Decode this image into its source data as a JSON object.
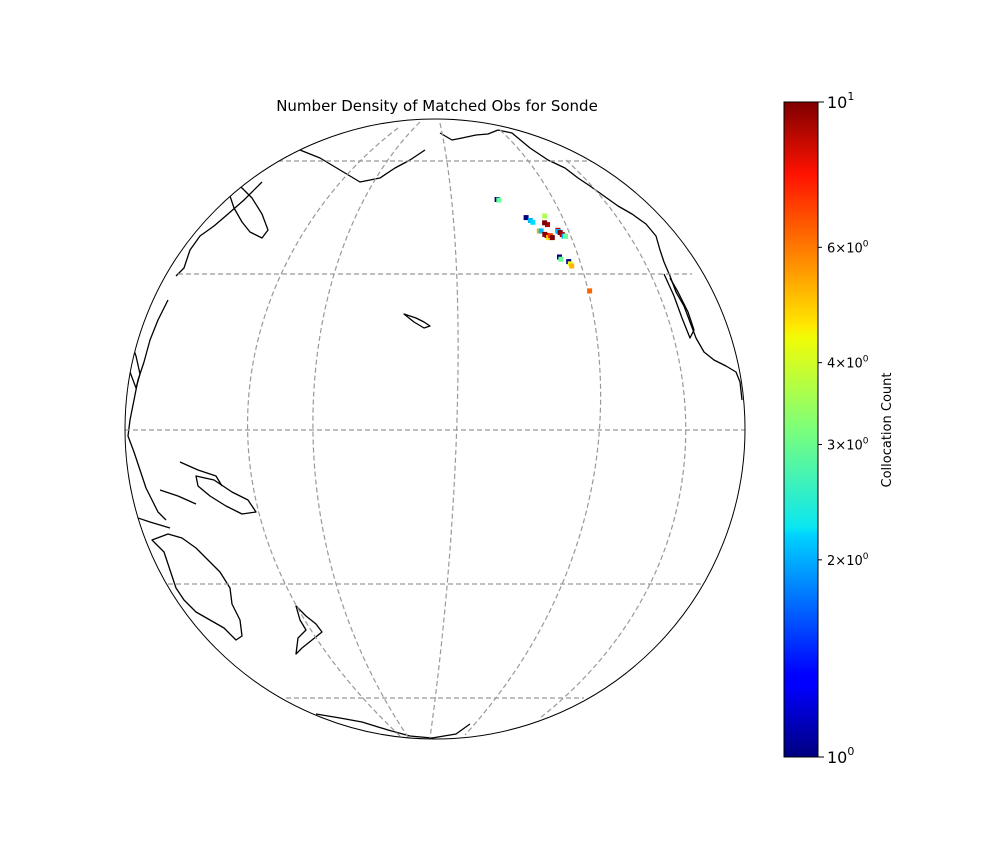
{
  "chart_data": {
    "type": "heatmap",
    "projection": "orthographic",
    "title": "Number Density of Matched Obs for Sonde",
    "colorbar": {
      "label": "Collocation Count",
      "scale": "log",
      "range": [
        1,
        10
      ],
      "colormap": "jet",
      "ticks": [
        {
          "value": 1,
          "base": "10",
          "exp": "0"
        },
        {
          "value": 2,
          "mant": "2",
          "base": "10",
          "exp": "0"
        },
        {
          "value": 3,
          "mant": "3",
          "base": "10",
          "exp": "0"
        },
        {
          "value": 4,
          "mant": "4",
          "base": "10",
          "exp": "0"
        },
        {
          "value": 6,
          "mant": "6",
          "base": "10",
          "exp": "0"
        },
        {
          "value": 10,
          "base": "10",
          "exp": "1"
        }
      ]
    },
    "grid": true,
    "gridline_color": "#999999",
    "points": [
      {
        "lat": 57.2,
        "lon": -135.3,
        "count": 1.0
      },
      {
        "lat": 57.0,
        "lon": -134.8,
        "count": 3.0
      },
      {
        "lat": 52.0,
        "lon": -128.5,
        "count": 1.0
      },
      {
        "lat": 51.2,
        "lon": -127.6,
        "count": 2.0
      },
      {
        "lat": 50.7,
        "lon": -127.1,
        "count": 2.2
      },
      {
        "lat": 48.5,
        "lon": -126.5,
        "count": 5.0
      },
      {
        "lat": 48.5,
        "lon": -125.9,
        "count": 2.0
      },
      {
        "lat": 47.6,
        "lon": -125.3,
        "count": 10.0
      },
      {
        "lat": 47.3,
        "lon": -124.8,
        "count": 9.5
      },
      {
        "lat": 46.8,
        "lon": -124.6,
        "count": 4.5
      },
      {
        "lat": 47.2,
        "lon": -123.8,
        "count": 6.5
      },
      {
        "lat": 46.7,
        "lon": -123.5,
        "count": 10.0
      },
      {
        "lat": 49.8,
        "lon": -122.8,
        "count": 9.0
      },
      {
        "lat": 50.3,
        "lon": -123.4,
        "count": 10.0
      },
      {
        "lat": 51.9,
        "lon": -122.0,
        "count": 3.5
      },
      {
        "lat": 48.2,
        "lon": -120.5,
        "count": 8.5
      },
      {
        "lat": 47.9,
        "lon": -120.6,
        "count": 2.0
      },
      {
        "lat": 47.6,
        "lon": -120.2,
        "count": 10.0
      },
      {
        "lat": 47.1,
        "lon": -119.9,
        "count": 9.0
      },
      {
        "lat": 46.7,
        "lon": -119.6,
        "count": 2.0
      },
      {
        "lat": 46.6,
        "lon": -119.2,
        "count": 3.0
      },
      {
        "lat": 42.3,
        "lon": -124.1,
        "count": 1.0
      },
      {
        "lat": 41.8,
        "lon": -124.0,
        "count": 3.0
      },
      {
        "lat": 41.1,
        "lon": -122.1,
        "count": 1.0
      },
      {
        "lat": 40.6,
        "lon": -121.9,
        "count": 4.0
      },
      {
        "lat": 40.1,
        "lon": -121.8,
        "count": 5.0
      },
      {
        "lat": 34.6,
        "lon": -119.7,
        "count": 6.0
      }
    ]
  }
}
